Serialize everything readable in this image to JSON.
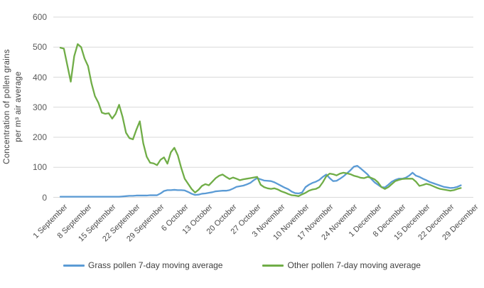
{
  "chart": {
    "y_axis_title_line1": "Concentration of pollen grains",
    "y_axis_title_line2": "per m³ air average",
    "legend": [
      {
        "label": "Grass pollen 7-day moving average",
        "color": "#5B9BD5"
      },
      {
        "label": "Other pollen 7-day moving average",
        "color": "#70AD47"
      }
    ]
  },
  "chart_data": {
    "type": "line",
    "title": "",
    "xlabel": "",
    "ylabel": "Concentration of pollen grains per m³ air average",
    "ylim": [
      0,
      600
    ],
    "y_ticks": [
      0,
      100,
      200,
      300,
      400,
      500,
      600
    ],
    "x_tick_labels": [
      "1 September",
      "8 September",
      "15 September",
      "22 September",
      "29 September",
      "6 October",
      "13 October",
      "20 October",
      "27 October",
      "3 November",
      "10 November",
      "17 November",
      "24 November",
      "1 December",
      "8 December",
      "15 December",
      "22 December",
      "29 December"
    ],
    "x_resolution": "daily points, one tick every 7 days, data from 1 September to 26 December",
    "grid": "horizontal",
    "legend_position": "bottom",
    "gridline_color": "#D9D9D9",
    "series": [
      {
        "name": "Grass pollen 7-day moving average",
        "color": "#5B9BD5",
        "values": [
          2,
          2,
          2,
          2,
          2,
          2,
          2,
          2,
          2,
          2,
          2,
          2,
          2,
          2,
          2,
          2,
          2,
          2,
          3,
          4,
          5,
          5,
          6,
          6,
          6,
          6,
          7,
          7,
          7,
          13,
          21,
          24,
          24,
          25,
          24,
          24,
          23,
          18,
          12,
          8,
          9,
          12,
          13,
          15,
          17,
          20,
          21,
          22,
          22,
          24,
          29,
          35,
          37,
          39,
          43,
          48,
          57,
          64,
          60,
          56,
          55,
          54,
          50,
          44,
          38,
          32,
          27,
          19,
          14,
          13,
          16,
          34,
          42,
          48,
          52,
          58,
          68,
          76,
          64,
          54,
          55,
          62,
          70,
          80,
          90,
          102,
          105,
          96,
          86,
          76,
          62,
          50,
          42,
          34,
          33,
          42,
          52,
          58,
          62,
          62,
          65,
          72,
          82,
          72,
          68,
          62,
          57,
          51,
          47,
          43,
          39,
          35,
          33,
          31,
          32,
          35,
          40
        ]
      },
      {
        "name": "Other pollen 7-day moving average",
        "color": "#70AD47",
        "values": [
          498,
          495,
          440,
          385,
          470,
          510,
          500,
          462,
          437,
          380,
          337,
          315,
          282,
          278,
          280,
          262,
          278,
          308,
          268,
          215,
          197,
          193,
          225,
          253,
          180,
          135,
          115,
          113,
          107,
          125,
          133,
          112,
          150,
          165,
          140,
          98,
          62,
          45,
          28,
          16,
          25,
          38,
          44,
          40,
          52,
          64,
          72,
          76,
          68,
          61,
          66,
          62,
          57,
          60,
          62,
          64,
          66,
          68,
          42,
          34,
          30,
          28,
          30,
          26,
          20,
          16,
          11,
          7,
          6,
          4,
          10,
          15,
          22,
          26,
          28,
          34,
          50,
          70,
          79,
          77,
          73,
          79,
          82,
          80,
          77,
          72,
          69,
          65,
          64,
          68,
          65,
          60,
          50,
          34,
          28,
          34,
          44,
          54,
          58,
          61,
          62,
          62,
          62,
          52,
          38,
          41,
          45,
          42,
          37,
          32,
          28,
          26,
          24,
          22,
          24,
          28,
          31
        ]
      }
    ]
  }
}
